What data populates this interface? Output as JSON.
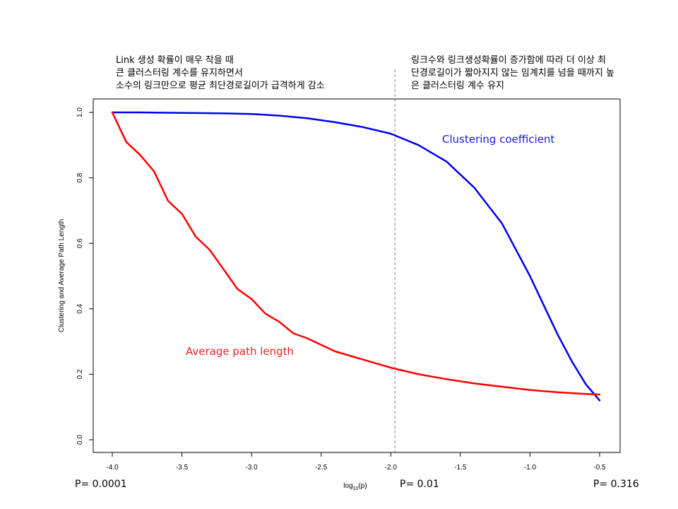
{
  "annotations": {
    "left_note": [
      "Link 생성 확률이 매우 작을 때",
      "큰 클러스터링 계수를 유지하면서",
      "소수의 링크만으로 평균 최단경로길이가 급격하게 감소"
    ],
    "right_note": [
      "링크수와 링크생성확률이 증가함에 따라 더 이상 최",
      "단경로길이가 짧아지지 않는 임계치를 넘을 때까지 높",
      "은 클러스터링 계수 유지"
    ],
    "p_labels": [
      "P= 0.0001",
      "P= 0.01",
      "P= 0.316"
    ]
  },
  "chart_data": {
    "type": "line",
    "title": "",
    "xlabel": "log10(p)",
    "ylabel": "Clustering and Average Path Length",
    "xlim": [
      -4.0,
      -0.5
    ],
    "ylim": [
      0.0,
      1.0
    ],
    "x_ticks": [
      "-4.0",
      "-3.5",
      "-3.0",
      "-2.5",
      "-2.0",
      "-1.5",
      "-1.0",
      "-0.5"
    ],
    "y_ticks": [
      "0.0",
      "0.2",
      "0.4",
      "0.6",
      "0.8",
      "1.0"
    ],
    "grid": false,
    "reference_line": {
      "x": -1.97,
      "style": "dashed",
      "color": "#808080"
    },
    "series": [
      {
        "name": "Clustering coefficient",
        "color": "#0000ee",
        "x": [
          -4.0,
          -3.8,
          -3.6,
          -3.4,
          -3.2,
          -3.0,
          -2.8,
          -2.6,
          -2.4,
          -2.2,
          -2.0,
          -1.8,
          -1.6,
          -1.4,
          -1.2,
          -1.0,
          -0.9,
          -0.8,
          -0.7,
          -0.6,
          -0.5
        ],
        "values": [
          1.0,
          1.0,
          0.999,
          0.998,
          0.997,
          0.995,
          0.99,
          0.982,
          0.97,
          0.955,
          0.935,
          0.9,
          0.85,
          0.77,
          0.66,
          0.5,
          0.41,
          0.32,
          0.24,
          0.17,
          0.12
        ]
      },
      {
        "name": "Average path length",
        "color": "#ff0000",
        "x": [
          -4.0,
          -3.9,
          -3.8,
          -3.7,
          -3.6,
          -3.5,
          -3.4,
          -3.3,
          -3.2,
          -3.1,
          -3.0,
          -2.9,
          -2.8,
          -2.7,
          -2.6,
          -2.5,
          -2.4,
          -2.2,
          -2.0,
          -1.8,
          -1.6,
          -1.4,
          -1.2,
          -1.0,
          -0.8,
          -0.6,
          -0.5
        ],
        "values": [
          1.0,
          0.91,
          0.87,
          0.82,
          0.73,
          0.69,
          0.62,
          0.58,
          0.52,
          0.46,
          0.43,
          0.385,
          0.36,
          0.325,
          0.31,
          0.29,
          0.27,
          0.245,
          0.22,
          0.2,
          0.185,
          0.172,
          0.162,
          0.152,
          0.145,
          0.14,
          0.138
        ]
      }
    ]
  }
}
